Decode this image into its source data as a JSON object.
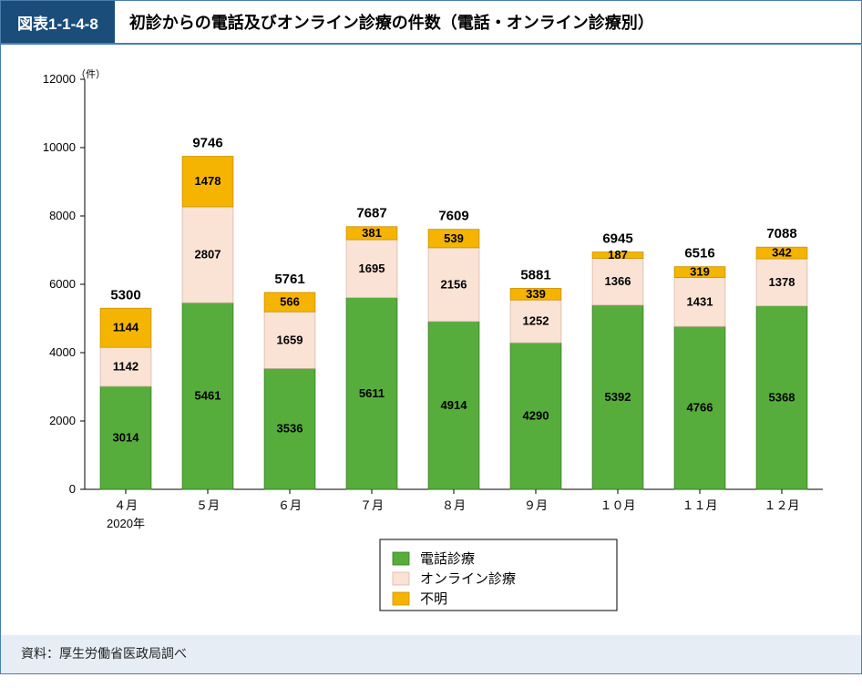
{
  "header": {
    "badge": "図表1-1-4-8",
    "title": "初診からの電話及びオンライン診療の件数（電話・オンライン診療別）"
  },
  "chart": {
    "type": "stacked-bar",
    "y_unit_label": "（件）",
    "x_sublabel": "2020年",
    "ylim": [
      0,
      12000
    ],
    "ytick_step": 2000,
    "yticks": [
      0,
      2000,
      4000,
      6000,
      8000,
      10000,
      12000
    ],
    "bar_width_ratio": 0.62,
    "colors": {
      "phone": "#57ad3c",
      "online": "#fae2d5",
      "unknown": "#f5b400",
      "bar_stroke": "#3a7a28",
      "online_stroke": "#d9b8a6",
      "unknown_stroke": "#c99000",
      "axis": "#000000",
      "text": "#000000",
      "legend_border": "#000000",
      "background": "#ffffff"
    },
    "fonts": {
      "axis_tick": 13,
      "value_label": 13,
      "total_label": 15,
      "legend": 15,
      "unit": 11
    },
    "categories": [
      "４月",
      "５月",
      "６月",
      "７月",
      "８月",
      "９月",
      "１０月",
      "１１月",
      "１２月"
    ],
    "series": [
      {
        "key": "phone",
        "label": "電話診療"
      },
      {
        "key": "online",
        "label": "オンライン診療"
      },
      {
        "key": "unknown",
        "label": "不明"
      }
    ],
    "data": [
      {
        "phone": 3014,
        "online": 1142,
        "unknown": 1144,
        "total": 5300
      },
      {
        "phone": 5461,
        "online": 2807,
        "unknown": 1478,
        "total": 9746
      },
      {
        "phone": 3536,
        "online": 1659,
        "unknown": 566,
        "total": 5761
      },
      {
        "phone": 5611,
        "online": 1695,
        "unknown": 381,
        "total": 7687
      },
      {
        "phone": 4914,
        "online": 2156,
        "unknown": 539,
        "total": 7609
      },
      {
        "phone": 4290,
        "online": 1252,
        "unknown": 339,
        "total": 5881
      },
      {
        "phone": 5392,
        "online": 1366,
        "unknown": 187,
        "total": 6945
      },
      {
        "phone": 4766,
        "online": 1431,
        "unknown": 319,
        "total": 6516
      },
      {
        "phone": 5368,
        "online": 1378,
        "unknown": 342,
        "total": 7088
      }
    ]
  },
  "source": "資料：厚生労働省医政局調べ"
}
